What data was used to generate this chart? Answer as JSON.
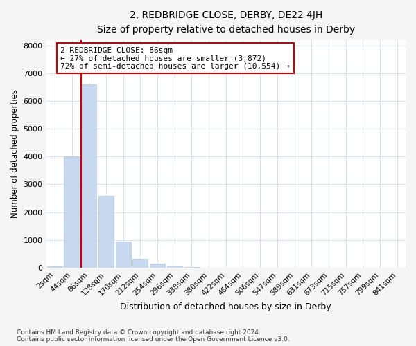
{
  "title": "2, REDBRIDGE CLOSE, DERBY, DE22 4JH",
  "subtitle": "Size of property relative to detached houses in Derby",
  "xlabel": "Distribution of detached houses by size in Derby",
  "ylabel": "Number of detached properties",
  "bar_color": "#c8d8ee",
  "bar_edge_color": "#b0c8e0",
  "marker_color": "#cc0000",
  "marker_index": 2,
  "categories": [
    "2sqm",
    "44sqm",
    "86sqm",
    "128sqm",
    "170sqm",
    "212sqm",
    "254sqm",
    "296sqm",
    "338sqm",
    "380sqm",
    "422sqm",
    "464sqm",
    "506sqm",
    "547sqm",
    "589sqm",
    "631sqm",
    "673sqm",
    "715sqm",
    "757sqm",
    "799sqm",
    "841sqm"
  ],
  "values": [
    60,
    4000,
    6600,
    2600,
    950,
    330,
    150,
    80,
    30,
    0,
    0,
    0,
    0,
    0,
    0,
    0,
    0,
    0,
    0,
    0,
    0
  ],
  "annotation_text": "2 REDBRIDGE CLOSE: 86sqm\n← 27% of detached houses are smaller (3,872)\n72% of semi-detached houses are larger (10,554) →",
  "ylim": [
    0,
    8200
  ],
  "yticks": [
    0,
    1000,
    2000,
    3000,
    4000,
    5000,
    6000,
    7000,
    8000
  ],
  "background_color": "#f5f5f5",
  "plot_bg_color": "#ffffff",
  "grid_color": "#d0dce8",
  "footer_line1": "Contains HM Land Registry data © Crown copyright and database right 2024.",
  "footer_line2": "Contains public sector information licensed under the Open Government Licence v3.0."
}
